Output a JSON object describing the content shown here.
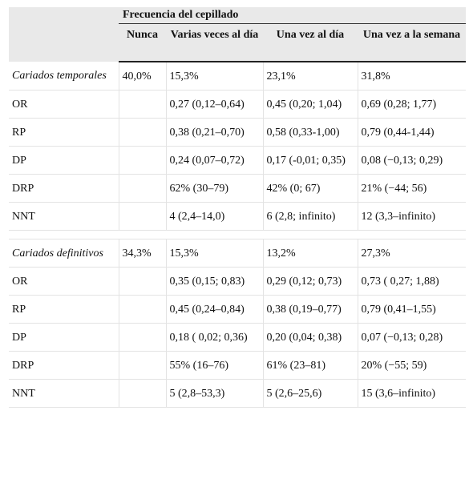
{
  "header": {
    "group_title": "Frecuencia del cepillado",
    "columns": [
      "Nunca",
      "Varias veces al día",
      "Una vez al día",
      "Una vez a la semana"
    ]
  },
  "sections": [
    {
      "rows": [
        [
          "Cariados temporales",
          "40,0%",
          "15,3%",
          "23,1%",
          "31,8%"
        ],
        [
          "OR",
          "",
          "0,27 (0,12–0,64)",
          "0,45 (0,20; 1,04)",
          "0,69 (0,28; 1,77)"
        ],
        [
          "RP",
          "",
          "0,38 (0,21–0,70)",
          "0,58 (0,33-1,00)",
          "0,79 (0,44-1,44)"
        ],
        [
          "DP",
          "",
          "0,24 (0,07–0,72)",
          "0,17 (-0,01; 0,35)",
          "0,08 (−0,13; 0,29)"
        ],
        [
          "DRP",
          "",
          "62% (30–79)",
          "42% (0; 67)",
          "21% (−44; 56)"
        ],
        [
          "NNT",
          "",
          "4 (2,4–14,0)",
          "6 (2,8; infinito)",
          "12 (3,3–infinito)"
        ]
      ]
    },
    {
      "rows": [
        [
          "Cariados definitivos",
          "34,3%",
          "15,3%",
          "13,2%",
          "27,3%"
        ],
        [
          "OR",
          "",
          "0,35 (0,15; 0,83)",
          "0,29 (0,12; 0,73)",
          "0,73 ( 0,27; 1,88)"
        ],
        [
          "RP",
          "",
          "0,45 (0,24–0,84)",
          "0,38 (0,19–0,77)",
          "0,79 (0,41–1,55)"
        ],
        [
          "DP",
          "",
          "0,18 ( 0,02; 0,36)",
          "0,20 (0,04; 0,38)",
          "0,07 (−0,13; 0,28)"
        ],
        [
          "DRP",
          "",
          "55% (16–76)",
          "61% (23–81)",
          "20% (−55; 59)"
        ],
        [
          "NNT",
          "",
          "5 (2,8–53,3)",
          "5 (2,6–25,6)",
          "15 (3,6–infinito)"
        ]
      ]
    }
  ]
}
